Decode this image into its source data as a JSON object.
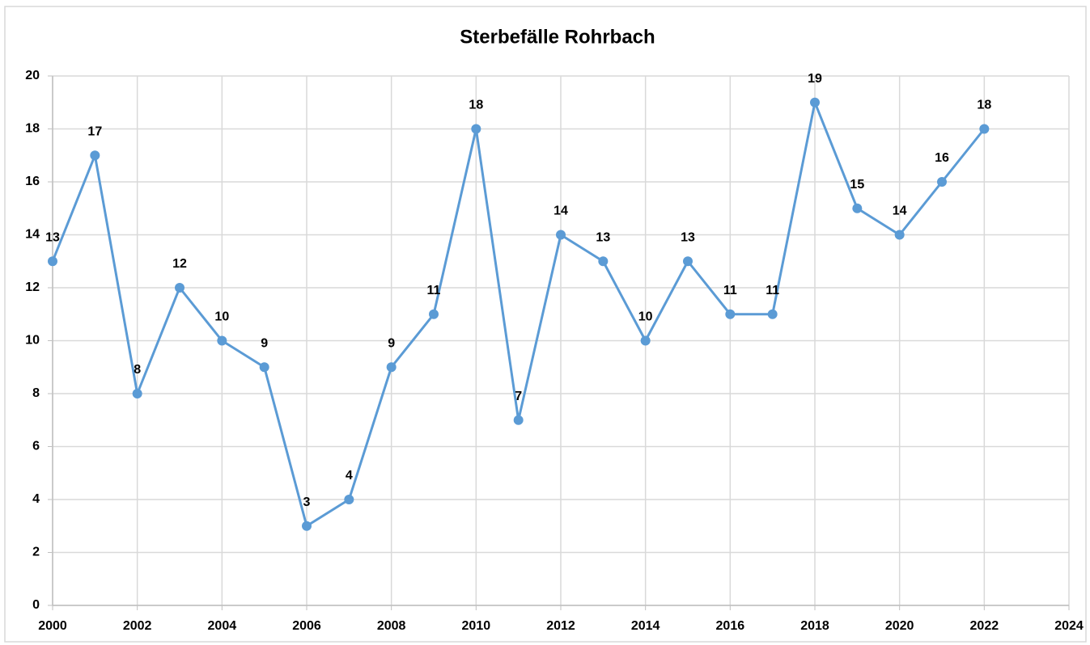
{
  "chart_data": {
    "type": "line",
    "title": "Sterbefälle Rohrbach",
    "x": [
      2000,
      2001,
      2002,
      2003,
      2004,
      2005,
      2006,
      2007,
      2008,
      2009,
      2010,
      2011,
      2012,
      2013,
      2014,
      2015,
      2016,
      2017,
      2018,
      2019,
      2020,
      2021,
      2022
    ],
    "values": [
      13,
      17,
      8,
      12,
      10,
      9,
      3,
      4,
      9,
      11,
      18,
      7,
      14,
      13,
      10,
      13,
      11,
      11,
      19,
      15,
      14,
      16,
      18
    ],
    "color": "#5b9bd5",
    "xlim": [
      2000,
      2024
    ],
    "xticks": [
      2000,
      2002,
      2004,
      2006,
      2008,
      2010,
      2012,
      2014,
      2016,
      2018,
      2020,
      2022,
      2024
    ],
    "ylim": [
      0,
      20
    ],
    "yticks": [
      0,
      2,
      4,
      6,
      8,
      10,
      12,
      14,
      16,
      18,
      20
    ],
    "grid": true
  }
}
